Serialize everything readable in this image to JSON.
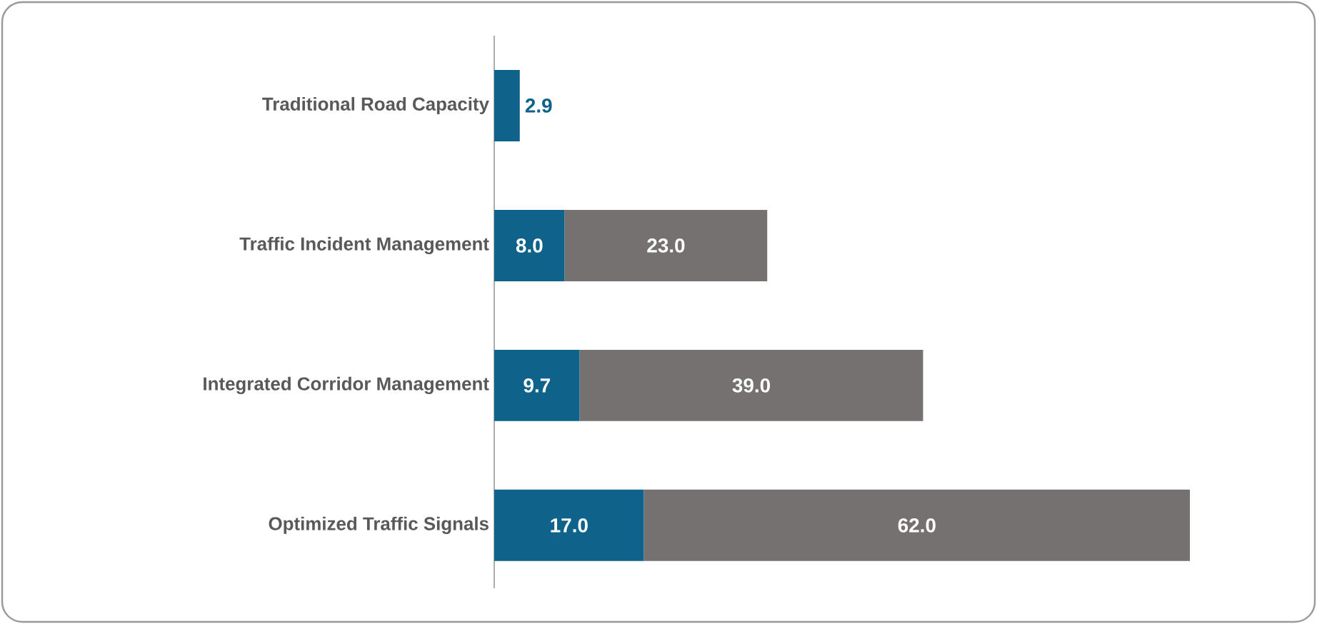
{
  "chart_data": {
    "type": "bar",
    "orientation": "horizontal",
    "stacked": true,
    "tick_labels": "y",
    "categories": [
      "Traditional Road Capacity",
      "Traffic Incident Management",
      "Integrated Corridor Management",
      "Optimized Traffic Signals"
    ],
    "series": [
      {
        "color": "#0f6289",
        "values": [
          2.9,
          8.0,
          9.7,
          17.0
        ],
        "value_labels": [
          "2.9",
          "8.0",
          "9.7",
          "17.0"
        ]
      },
      {
        "color": "#767171",
        "values": [
          null,
          23.0,
          39.0,
          62.0
        ],
        "value_labels": [
          null,
          "23.0",
          "39.0",
          "62.0"
        ]
      }
    ]
  }
}
